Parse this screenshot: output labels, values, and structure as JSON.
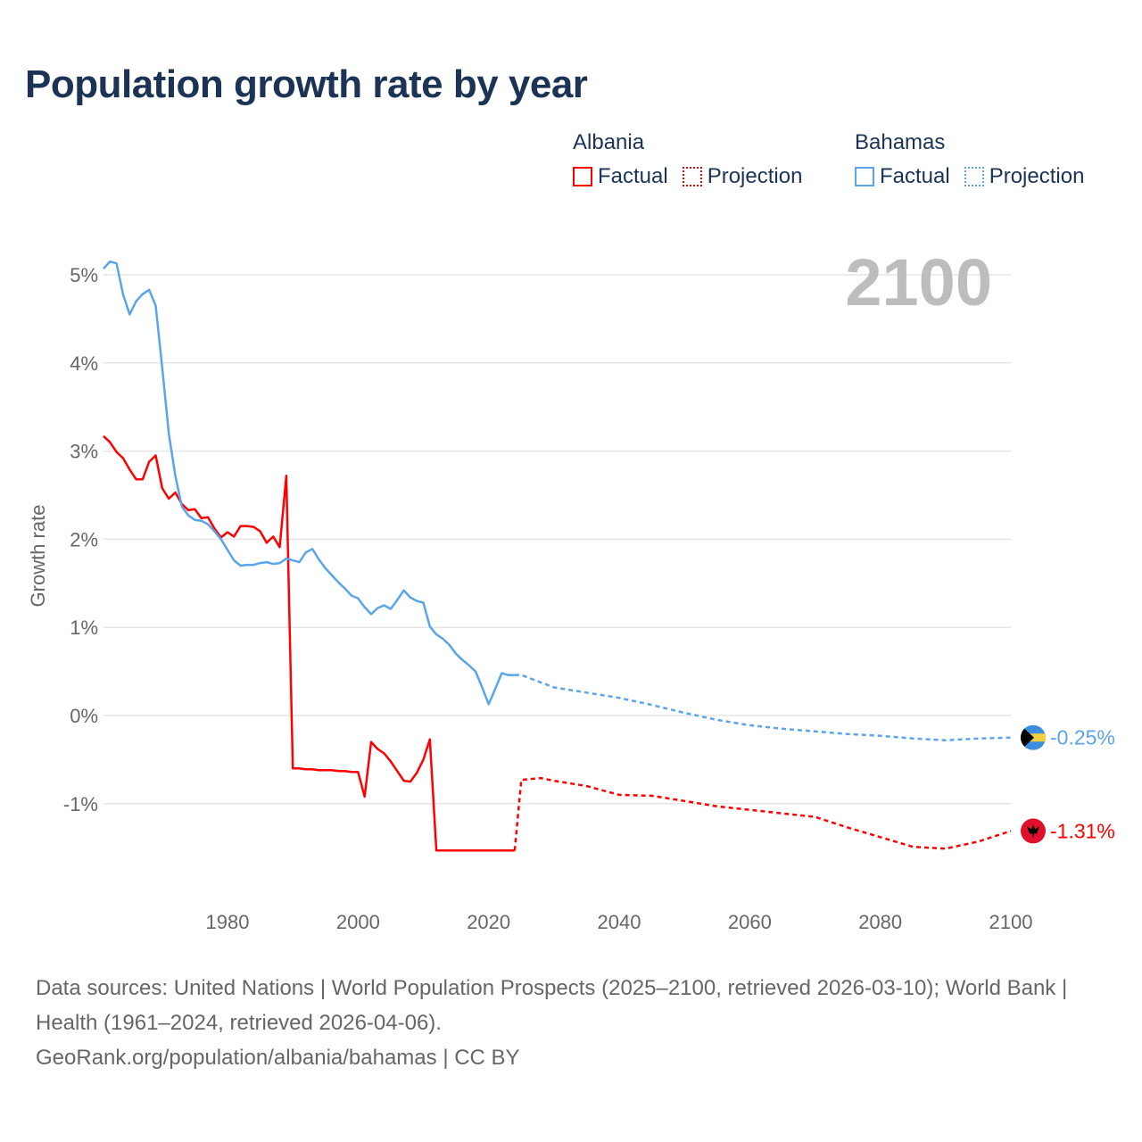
{
  "title": "Population growth rate by year",
  "big_year": "2100",
  "legend": {
    "groups": [
      {
        "name": "Albania",
        "factual": "Factual",
        "projection": "Projection",
        "color": "#ff0000"
      },
      {
        "name": "Bahamas",
        "factual": "Factual",
        "projection": "Projection",
        "color": "#5aa5ea"
      }
    ]
  },
  "footer": {
    "sources": "Data sources: United Nations | World Population Prospects (2025–2100, retrieved 2026-03-10); World Bank | Health (1961–2024, retrieved 2026-04-06).",
    "credit": "GeoRank.org/population/albania/bahamas | CC BY"
  },
  "chart_data": {
    "type": "line",
    "title": "Population growth rate by year",
    "xlabel": "",
    "ylabel": "Growth rate",
    "xlim": [
      1961,
      2100
    ],
    "ylim": [
      -2,
      5.5
    ],
    "grid": true,
    "x_ticks": [
      1980,
      2000,
      2020,
      2040,
      2060,
      2080,
      2100
    ],
    "x_tick_labels": [
      "1980",
      "2000",
      "2020",
      "2040",
      "2060",
      "2080",
      "2100"
    ],
    "y_ticks": [
      5,
      4,
      3,
      2,
      1,
      0,
      -1
    ],
    "y_tick_labels": [
      "5%",
      "4%",
      "3%",
      "2%",
      "1%",
      "0%",
      "-1%"
    ],
    "series": [
      {
        "name": "Albania",
        "kind": "factual",
        "color": "#ff0000",
        "points": [
          [
            1961,
            3.17
          ],
          [
            1962,
            3.1
          ],
          [
            1963,
            2.99
          ],
          [
            1964,
            2.92
          ],
          [
            1965,
            2.79
          ],
          [
            1966,
            2.68
          ],
          [
            1967,
            2.68
          ],
          [
            1968,
            2.88
          ],
          [
            1969,
            2.95
          ],
          [
            1970,
            2.58
          ],
          [
            1971,
            2.46
          ],
          [
            1972,
            2.53
          ],
          [
            1973,
            2.4
          ],
          [
            1974,
            2.33
          ],
          [
            1975,
            2.34
          ],
          [
            1976,
            2.24
          ],
          [
            1977,
            2.25
          ],
          [
            1978,
            2.12
          ],
          [
            1979,
            2.02
          ],
          [
            1980,
            2.08
          ],
          [
            1981,
            2.03
          ],
          [
            1982,
            2.15
          ],
          [
            1983,
            2.15
          ],
          [
            1984,
            2.14
          ],
          [
            1985,
            2.09
          ],
          [
            1986,
            1.96
          ],
          [
            1987,
            2.03
          ],
          [
            1988,
            1.91
          ],
          [
            1989,
            2.72
          ],
          [
            1990,
            -0.6
          ],
          [
            1991,
            -0.6
          ],
          [
            1992,
            -0.61
          ],
          [
            1993,
            -0.61
          ],
          [
            1994,
            -0.62
          ],
          [
            1995,
            -0.62
          ],
          [
            1996,
            -0.62
          ],
          [
            1997,
            -0.63
          ],
          [
            1998,
            -0.63
          ],
          [
            1999,
            -0.64
          ],
          [
            2000,
            -0.64
          ],
          [
            2001,
            -0.92
          ],
          [
            2002,
            -0.3
          ],
          [
            2003,
            -0.38
          ],
          [
            2004,
            -0.43
          ],
          [
            2005,
            -0.52
          ],
          [
            2006,
            -0.63
          ],
          [
            2007,
            -0.74
          ],
          [
            2008,
            -0.75
          ],
          [
            2009,
            -0.65
          ],
          [
            2010,
            -0.5
          ],
          [
            2011,
            -0.27
          ],
          [
            2012,
            -1.53
          ],
          [
            2013,
            -1.53
          ],
          [
            2014,
            -1.53
          ],
          [
            2015,
            -1.53
          ],
          [
            2016,
            -1.53
          ],
          [
            2017,
            -1.53
          ],
          [
            2018,
            -1.53
          ],
          [
            2019,
            -1.53
          ],
          [
            2020,
            -1.53
          ],
          [
            2021,
            -1.53
          ],
          [
            2022,
            -1.53
          ],
          [
            2023,
            -1.53
          ],
          [
            2024,
            -1.53
          ]
        ]
      },
      {
        "name": "Albania",
        "kind": "projection",
        "color": "#ff0000",
        "points": [
          [
            2024,
            -1.53
          ],
          [
            2025,
            -0.73
          ],
          [
            2028,
            -0.71
          ],
          [
            2030,
            -0.74
          ],
          [
            2035,
            -0.8
          ],
          [
            2040,
            -0.9
          ],
          [
            2045,
            -0.91
          ],
          [
            2050,
            -0.97
          ],
          [
            2055,
            -1.03
          ],
          [
            2060,
            -1.07
          ],
          [
            2065,
            -1.11
          ],
          [
            2070,
            -1.15
          ],
          [
            2075,
            -1.27
          ],
          [
            2080,
            -1.38
          ],
          [
            2085,
            -1.49
          ],
          [
            2090,
            -1.51
          ],
          [
            2095,
            -1.43
          ],
          [
            2100,
            -1.31
          ]
        ]
      },
      {
        "name": "Bahamas",
        "kind": "factual",
        "color": "#5aa5ea",
        "points": [
          [
            1961,
            5.07
          ],
          [
            1962,
            5.15
          ],
          [
            1963,
            5.13
          ],
          [
            1964,
            4.78
          ],
          [
            1965,
            4.55
          ],
          [
            1966,
            4.7
          ],
          [
            1967,
            4.78
          ],
          [
            1968,
            4.83
          ],
          [
            1969,
            4.65
          ],
          [
            1970,
            3.95
          ],
          [
            1971,
            3.2
          ],
          [
            1972,
            2.72
          ],
          [
            1973,
            2.37
          ],
          [
            1974,
            2.27
          ],
          [
            1975,
            2.22
          ],
          [
            1976,
            2.21
          ],
          [
            1977,
            2.17
          ],
          [
            1978,
            2.09
          ],
          [
            1979,
            2.0
          ],
          [
            1980,
            1.88
          ],
          [
            1981,
            1.76
          ],
          [
            1982,
            1.7
          ],
          [
            1983,
            1.71
          ],
          [
            1984,
            1.71
          ],
          [
            1985,
            1.73
          ],
          [
            1986,
            1.74
          ],
          [
            1987,
            1.72
          ],
          [
            1988,
            1.73
          ],
          [
            1989,
            1.78
          ],
          [
            1990,
            1.76
          ],
          [
            1991,
            1.74
          ],
          [
            1992,
            1.85
          ],
          [
            1993,
            1.89
          ],
          [
            1994,
            1.77
          ],
          [
            1995,
            1.67
          ],
          [
            1996,
            1.59
          ],
          [
            1997,
            1.51
          ],
          [
            1998,
            1.44
          ],
          [
            1999,
            1.36
          ],
          [
            2000,
            1.33
          ],
          [
            2001,
            1.23
          ],
          [
            2002,
            1.15
          ],
          [
            2003,
            1.22
          ],
          [
            2004,
            1.25
          ],
          [
            2005,
            1.21
          ],
          [
            2006,
            1.31
          ],
          [
            2007,
            1.42
          ],
          [
            2008,
            1.34
          ],
          [
            2009,
            1.3
          ],
          [
            2010,
            1.28
          ],
          [
            2011,
            1.01
          ],
          [
            2012,
            0.92
          ],
          [
            2013,
            0.87
          ],
          [
            2014,
            0.8
          ],
          [
            2015,
            0.7
          ],
          [
            2016,
            0.63
          ],
          [
            2017,
            0.57
          ],
          [
            2018,
            0.5
          ],
          [
            2019,
            0.32
          ],
          [
            2020,
            0.13
          ],
          [
            2021,
            0.3
          ],
          [
            2022,
            0.48
          ],
          [
            2023,
            0.46
          ],
          [
            2024,
            0.46
          ]
        ]
      },
      {
        "name": "Bahamas",
        "kind": "projection",
        "color": "#5aa5ea",
        "points": [
          [
            2024,
            0.46
          ],
          [
            2025,
            0.46
          ],
          [
            2030,
            0.32
          ],
          [
            2035,
            0.26
          ],
          [
            2040,
            0.2
          ],
          [
            2045,
            0.12
          ],
          [
            2050,
            0.03
          ],
          [
            2055,
            -0.05
          ],
          [
            2060,
            -0.11
          ],
          [
            2065,
            -0.15
          ],
          [
            2070,
            -0.18
          ],
          [
            2075,
            -0.21
          ],
          [
            2080,
            -0.23
          ],
          [
            2085,
            -0.26
          ],
          [
            2090,
            -0.28
          ],
          [
            2095,
            -0.26
          ],
          [
            2100,
            -0.25
          ]
        ]
      }
    ],
    "end_labels": [
      {
        "name": "Bahamas",
        "value": -0.25,
        "text": "-0.25%",
        "color": "#5aa5ea",
        "flag": "bahamas-flag"
      },
      {
        "name": "Albania",
        "value": -1.31,
        "text": "-1.31%",
        "color": "#ff0000",
        "flag": "albania-flag"
      }
    ]
  }
}
